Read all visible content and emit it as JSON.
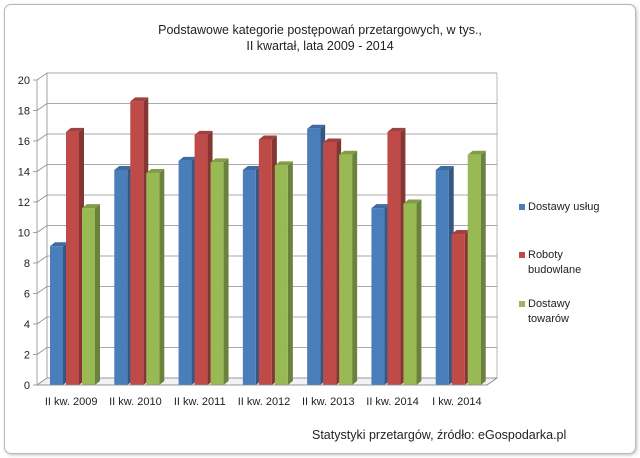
{
  "chart_data": {
    "type": "bar",
    "title": "Podstawowe kategorie postępowań przetargowych, w tys.,",
    "subtitle": "II kwartał,  lata 2009  - 2014",
    "categories": [
      "II kw. 2009",
      "II kw. 2010",
      "II kw. 2011",
      "II kw. 2012",
      "II kw. 2013",
      "II kw. 2014",
      "I kw. 2014"
    ],
    "series": [
      {
        "name": "Dostawy usług",
        "color": "#4a7ebb",
        "values": [
          9.1,
          14.1,
          14.7,
          14.1,
          16.8,
          11.6,
          14.1
        ]
      },
      {
        "name": "Roboty budowlane",
        "color": "#be4b48",
        "values": [
          16.6,
          18.6,
          16.4,
          16.1,
          15.9,
          16.6,
          9.9
        ]
      },
      {
        "name": "Dostawy towarów",
        "color": "#98b954",
        "values": [
          11.6,
          13.9,
          14.6,
          14.4,
          15.1,
          11.9,
          15.1
        ]
      }
    ],
    "ylim": [
      0,
      20
    ],
    "yticks": [
      "0",
      "2",
      "4",
      "6",
      "8",
      "10",
      "12",
      "14",
      "16",
      "18",
      "20"
    ],
    "grid": true,
    "legend_position": "right"
  },
  "legend": [
    {
      "label": "Dostawy usług",
      "color": "#4a7ebb"
    },
    {
      "label": "Roboty budowlane",
      "color": "#be4b48"
    },
    {
      "label": "Dostawy towarów",
      "color": "#98b954"
    }
  ],
  "source_note": "Statystyki przetargów, źródło: eGospodarka.pl"
}
